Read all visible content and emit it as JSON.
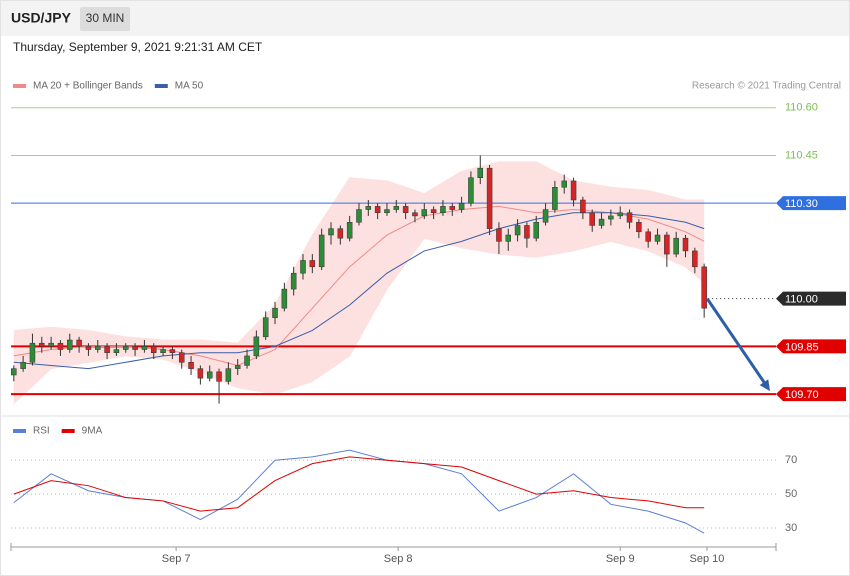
{
  "header": {
    "symbol": "USD/JPY",
    "timeframe": "30 MIN",
    "datetime": "Thursday, September 9, 2021 9:21:31 AM CET",
    "credit": "Research © 2021 Trading Central"
  },
  "chart_data": [
    {
      "type": "candlestick",
      "xlim": [
        -0.3,
        81.7
      ],
      "ylim": [
        109.65,
        110.64
      ],
      "up_color": "#2e8b3a",
      "down_color": "#d32626",
      "open": [
        109.76,
        109.78,
        109.8,
        109.86,
        109.85,
        109.86,
        109.84,
        109.87,
        109.85,
        109.84,
        109.85,
        109.83,
        109.84,
        109.85,
        109.84,
        109.85,
        109.83,
        109.84,
        109.83,
        109.8,
        109.78,
        109.75,
        109.77,
        109.74,
        109.78,
        109.79,
        109.82,
        109.88,
        109.94,
        109.97,
        110.03,
        110.08,
        110.12,
        110.1,
        110.2,
        110.22,
        110.19,
        110.24,
        110.28,
        110.29,
        110.27,
        110.28,
        110.29,
        110.27,
        110.26,
        110.28,
        110.27,
        110.29,
        110.28,
        110.3,
        110.38,
        110.41,
        110.22,
        110.18,
        110.2,
        110.23,
        110.19,
        110.24,
        110.28,
        110.35,
        110.37,
        110.31,
        110.27,
        110.23,
        110.25,
        110.26,
        110.27,
        110.24,
        110.21,
        110.18,
        110.2,
        110.14,
        110.19,
        110.15,
        110.1
      ],
      "high": [
        109.79,
        109.82,
        109.89,
        109.88,
        109.88,
        109.87,
        109.89,
        109.88,
        109.86,
        109.87,
        109.86,
        109.86,
        109.86,
        109.86,
        109.87,
        109.86,
        109.85,
        109.85,
        109.84,
        109.82,
        109.79,
        109.79,
        109.78,
        109.8,
        109.81,
        109.84,
        109.9,
        109.96,
        109.99,
        110.05,
        110.1,
        110.14,
        110.14,
        110.22,
        110.24,
        110.23,
        110.26,
        110.3,
        110.31,
        110.3,
        110.3,
        110.31,
        110.3,
        110.28,
        110.3,
        110.29,
        110.31,
        110.3,
        110.32,
        110.4,
        110.45,
        110.42,
        110.24,
        110.22,
        110.25,
        110.24,
        110.26,
        110.3,
        110.37,
        110.39,
        110.38,
        110.32,
        110.28,
        110.27,
        110.28,
        110.29,
        110.28,
        110.25,
        110.22,
        110.22,
        110.21,
        110.21,
        110.2,
        110.16,
        110.11
      ],
      "low": [
        109.74,
        109.77,
        109.79,
        109.83,
        109.84,
        109.82,
        109.83,
        109.83,
        109.82,
        109.83,
        109.81,
        109.82,
        109.83,
        109.82,
        109.83,
        109.81,
        109.82,
        109.81,
        109.78,
        109.76,
        109.73,
        109.74,
        109.67,
        109.73,
        109.76,
        109.78,
        109.81,
        109.87,
        109.92,
        109.96,
        110.01,
        110.06,
        110.08,
        110.09,
        110.17,
        110.17,
        110.18,
        110.23,
        110.26,
        110.25,
        110.26,
        110.27,
        110.25,
        110.24,
        110.25,
        110.25,
        110.26,
        110.26,
        110.27,
        110.29,
        110.36,
        110.2,
        110.14,
        110.15,
        110.18,
        110.16,
        110.18,
        110.23,
        110.27,
        110.33,
        110.29,
        110.25,
        110.21,
        110.22,
        110.23,
        110.25,
        110.22,
        110.19,
        110.16,
        110.17,
        110.1,
        110.13,
        110.13,
        110.08,
        109.94
      ],
      "close": [
        109.78,
        109.8,
        109.86,
        109.85,
        109.86,
        109.84,
        109.87,
        109.85,
        109.84,
        109.85,
        109.83,
        109.84,
        109.85,
        109.84,
        109.85,
        109.83,
        109.84,
        109.83,
        109.8,
        109.78,
        109.75,
        109.77,
        109.74,
        109.78,
        109.79,
        109.82,
        109.88,
        109.94,
        109.97,
        110.03,
        110.08,
        110.12,
        110.1,
        110.2,
        110.22,
        110.19,
        110.24,
        110.28,
        110.29,
        110.27,
        110.28,
        110.29,
        110.27,
        110.26,
        110.28,
        110.27,
        110.29,
        110.28,
        110.3,
        110.38,
        110.41,
        110.22,
        110.18,
        110.2,
        110.23,
        110.19,
        110.24,
        110.28,
        110.35,
        110.37,
        110.31,
        110.27,
        110.23,
        110.25,
        110.26,
        110.27,
        110.24,
        110.21,
        110.18,
        110.2,
        110.14,
        110.19,
        110.15,
        110.1,
        109.97
      ],
      "series": [
        {
          "name": "MA 20 + Bollinger Bands",
          "color": "#f08a8a",
          "band_color": "#fde0e0",
          "x": [
            0,
            4,
            8,
            12,
            16,
            20,
            24,
            28,
            32,
            36,
            40,
            44,
            48,
            52,
            56,
            60,
            64,
            68,
            72,
            74
          ],
          "values": [
            109.82,
            109.84,
            109.85,
            109.85,
            109.84,
            109.82,
            109.79,
            109.84,
            109.97,
            110.1,
            110.2,
            110.26,
            110.28,
            110.29,
            110.27,
            110.28,
            110.27,
            110.25,
            110.21,
            110.18
          ],
          "upper": [
            109.9,
            109.91,
            109.9,
            109.88,
            109.87,
            109.87,
            109.86,
            109.98,
            110.2,
            110.38,
            110.37,
            110.33,
            110.4,
            110.43,
            110.43,
            110.37,
            110.35,
            110.34,
            110.31,
            110.31
          ],
          "lower": [
            109.67,
            109.78,
            109.8,
            109.82,
            109.81,
            109.77,
            109.72,
            109.7,
            109.74,
            109.82,
            110.03,
            110.19,
            110.16,
            110.14,
            110.13,
            110.15,
            110.18,
            110.15,
            110.1,
            110.05
          ]
        },
        {
          "name": "MA 50",
          "color": "#3a5fa8",
          "x": [
            0,
            4,
            8,
            12,
            16,
            20,
            24,
            28,
            32,
            36,
            40,
            44,
            48,
            52,
            56,
            60,
            64,
            68,
            72,
            74
          ],
          "values": [
            109.8,
            109.79,
            109.78,
            109.8,
            109.82,
            109.83,
            109.83,
            109.85,
            109.9,
            109.98,
            110.08,
            110.15,
            110.18,
            110.22,
            110.25,
            110.27,
            110.27,
            110.26,
            110.24,
            110.22
          ]
        }
      ],
      "levels": [
        {
          "value": 110.6,
          "label": "110.60",
          "color": "#7cbf4f",
          "line": "thin",
          "tag": false
        },
        {
          "value": 110.45,
          "label": "110.45",
          "color": "#7cbf4f",
          "line": "thin",
          "tag": false
        },
        {
          "value": 110.3,
          "label": "110.30",
          "color": "#2f6fe0",
          "line": "thin",
          "tag": true
        },
        {
          "value": 110,
          "label": "110.00",
          "color": "#2b2b2b",
          "line": "dotted",
          "tag": true
        },
        {
          "value": 109.85,
          "label": "109.85",
          "color": "#e00000",
          "line": "thick",
          "tag": true
        },
        {
          "value": 109.7,
          "label": "109.70",
          "color": "#e00000",
          "line": "thick",
          "tag": true
        }
      ]
    },
    {
      "type": "line",
      "xlim": [
        -0.3,
        81.7
      ],
      "ylim": [
        20,
        79
      ],
      "yticks": [
        30,
        50,
        70
      ],
      "grid": true,
      "xticks": [
        {
          "value": 17.4,
          "label": "Sep 7"
        },
        {
          "value": 41.2,
          "label": "Sep 8"
        },
        {
          "value": 65,
          "label": "Sep 9"
        },
        {
          "value": 74.3,
          "label": "Sep 10"
        }
      ],
      "series": [
        {
          "name": "RSI",
          "color": "#5b7fd6",
          "x": [
            0,
            4,
            8,
            12,
            16,
            20,
            24,
            28,
            32,
            36,
            40,
            44,
            48,
            52,
            56,
            60,
            64,
            68,
            72,
            74
          ],
          "values": [
            45,
            62,
            52,
            48,
            46,
            35,
            47,
            70,
            72,
            76,
            70,
            68,
            62,
            40,
            48,
            62,
            44,
            40,
            33,
            27
          ]
        },
        {
          "name": "9MA",
          "color": "#e00000",
          "x": [
            0,
            4,
            8,
            12,
            16,
            20,
            24,
            28,
            32,
            36,
            40,
            44,
            48,
            52,
            56,
            60,
            64,
            68,
            72,
            74
          ],
          "values": [
            50,
            58,
            55,
            48,
            46,
            40,
            42,
            58,
            68,
            72,
            70,
            68,
            66,
            58,
            50,
            52,
            48,
            46,
            42,
            42
          ]
        }
      ]
    }
  ]
}
